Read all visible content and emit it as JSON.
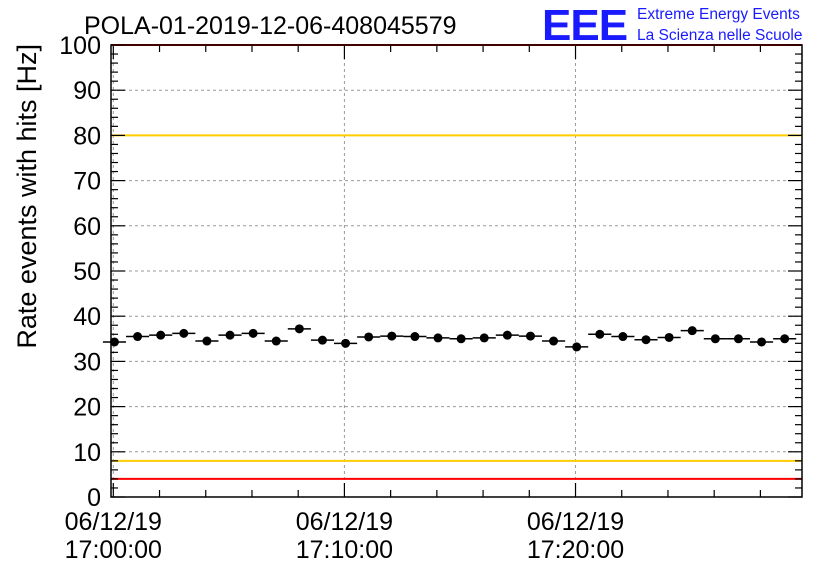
{
  "logo": {
    "mark": "EEE",
    "line1": "Extreme Energy Events",
    "line2": "La Scienza nelle Scuole",
    "color": "#1a1aff"
  },
  "chart_data": {
    "type": "scatter",
    "title": "POLA-01-2019-12-06-408045579",
    "ylabel": "Rate events with hits [Hz]",
    "xlabel": "",
    "ylim": [
      0,
      100
    ],
    "xlim_minutes": [
      -0.1,
      29.8
    ],
    "y_major_ticks": [
      0,
      10,
      20,
      30,
      40,
      50,
      60,
      70,
      80,
      90,
      100
    ],
    "x_major_ticks": [
      {
        "minute": 0,
        "date": "06/12/19",
        "time": "17:00:00"
      },
      {
        "minute": 10,
        "date": "06/12/19",
        "time": "17:10:00"
      },
      {
        "minute": 20,
        "date": "06/12/19",
        "time": "17:20:00"
      }
    ],
    "grid": true,
    "reference_lines": [
      {
        "y": 100,
        "color": "#ff0000"
      },
      {
        "y": 80,
        "color": "#ffcc00"
      },
      {
        "y": 8,
        "color": "#ffcc00"
      },
      {
        "y": 4,
        "color": "#ff0000"
      }
    ],
    "series": [
      {
        "bin_width_minutes": 1,
        "x_minutes": [
          0.05,
          1.05,
          2.05,
          3.05,
          4.05,
          5.05,
          6.05,
          7.05,
          8.05,
          9.05,
          10.05,
          11.05,
          12.05,
          13.05,
          14.05,
          15.05,
          16.05,
          17.05,
          18.05,
          19.05,
          20.05,
          21.05,
          22.05,
          23.05,
          24.05,
          25.05,
          26.05,
          27.05,
          28.05,
          29.05
        ],
        "values": [
          34.3,
          35.5,
          35.8,
          36.2,
          34.5,
          35.8,
          36.2,
          34.5,
          37.2,
          34.7,
          34.0,
          35.4,
          35.6,
          35.5,
          35.2,
          35.0,
          35.2,
          35.8,
          35.6,
          34.5,
          33.2,
          36.0,
          35.5,
          34.8,
          35.3,
          36.8,
          35.0,
          35.0,
          34.3,
          35.0
        ],
        "color": "#000000"
      }
    ]
  }
}
